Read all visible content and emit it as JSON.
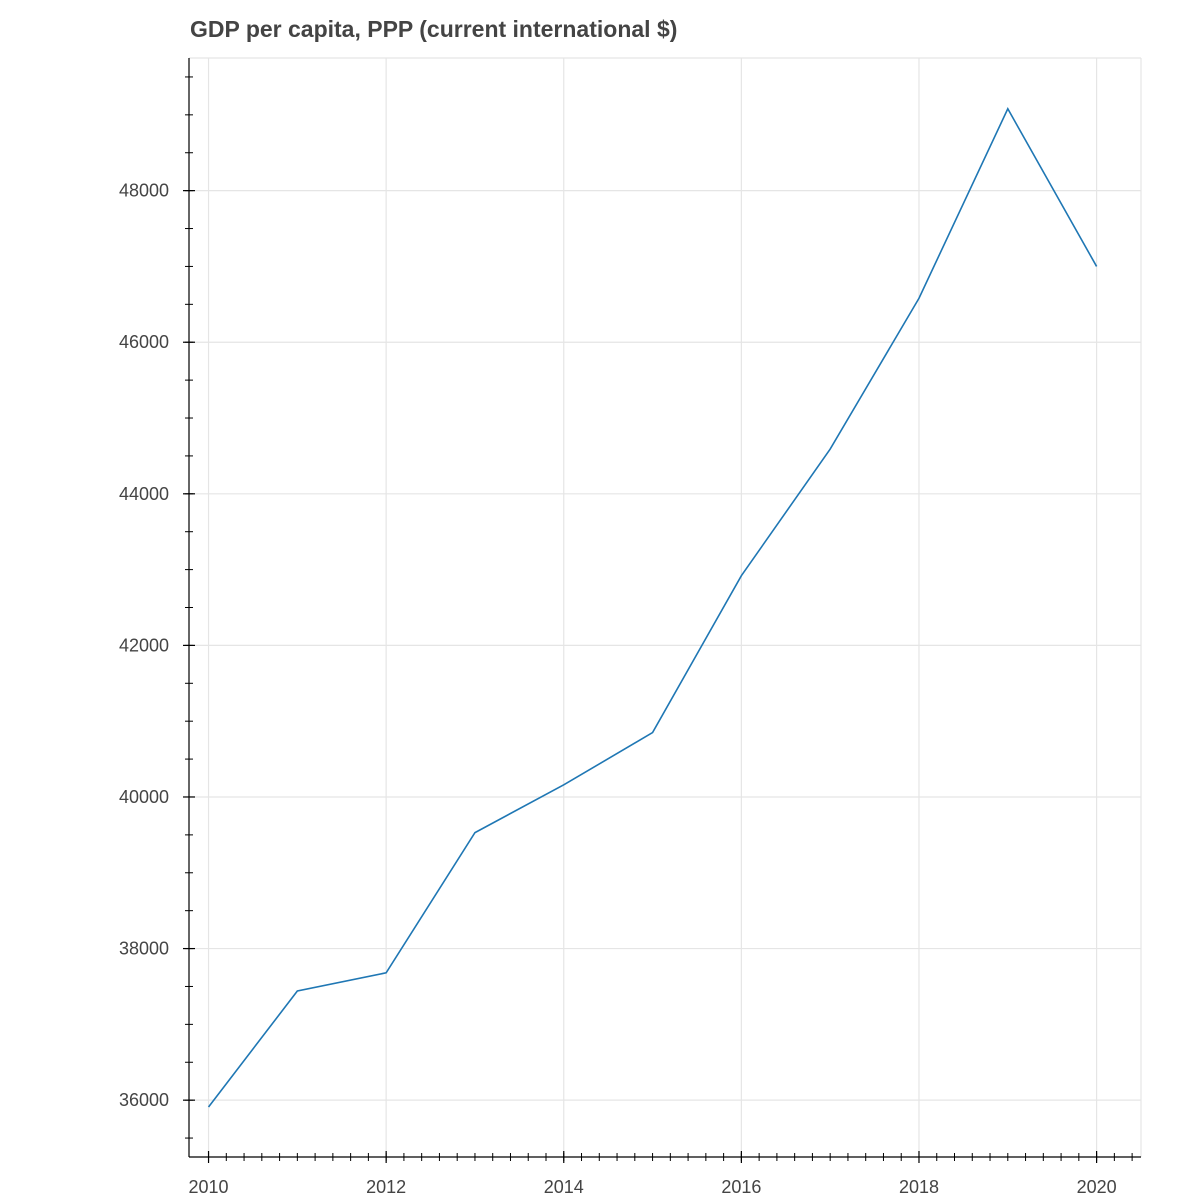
{
  "chart_data": {
    "type": "line",
    "title": "GDP per capita, PPP (current international $)",
    "xlabel": "",
    "ylabel": "",
    "x": [
      2010,
      2011,
      2012,
      2013,
      2014,
      2015,
      2016,
      2017,
      2018,
      2019,
      2020
    ],
    "series": [
      {
        "values": [
          35910,
          37440,
          37680,
          39530,
          40160,
          40850,
          42920,
          44590,
          46580,
          49080,
          47000
        ]
      }
    ],
    "xlim": [
      2009.78,
      2020.5
    ],
    "ylim": [
      35250,
      49750
    ],
    "x_ticks": [
      2010,
      2012,
      2014,
      2016,
      2018,
      2020
    ],
    "x_tick_labels": [
      "2010",
      "2012",
      "2014",
      "2016",
      "2018",
      "2020"
    ],
    "y_ticks": [
      36000,
      38000,
      40000,
      42000,
      44000,
      46000,
      48000
    ],
    "y_tick_labels": [
      "36000",
      "38000",
      "40000",
      "42000",
      "44000",
      "46000",
      "48000"
    ],
    "grid": true,
    "legend": "none",
    "colors": {
      "line": "#1f77b4",
      "grid": "#e5e5e5",
      "axis": "#000000",
      "text": "#444444"
    }
  }
}
